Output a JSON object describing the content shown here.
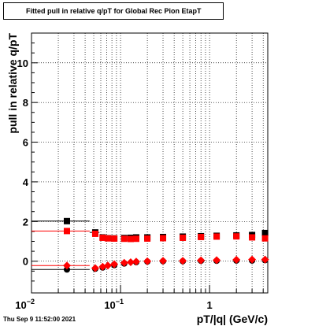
{
  "chart_data": {
    "type": "scatter",
    "title": "Fitted pull in relative q/pT for Global Rec Pion EtapT",
    "xlabel": "pT/|q| (GeV/c)",
    "ylabel": "pull in relative q/pT",
    "x_scale": "log",
    "xlim": [
      0.01,
      4.5
    ],
    "ylim": [
      -1.6,
      11.5
    ],
    "x_ticks": [
      {
        "value": 0.01,
        "base": "10",
        "exp": "−2"
      },
      {
        "value": 0.1,
        "base": "10",
        "exp": "−1"
      },
      {
        "value": 1,
        "base": "1",
        "exp": ""
      }
    ],
    "y_ticks": [
      0,
      2,
      4,
      6,
      8,
      10
    ],
    "grid": true,
    "timestamp": "Thu Sep  9 11:52:00 2021",
    "series": [
      {
        "marker": "square",
        "color": "#000000",
        "points": [
          [
            0.025,
            2.02
          ],
          [
            0.052,
            1.45
          ],
          [
            0.063,
            1.2
          ],
          [
            0.072,
            1.16
          ],
          [
            0.085,
            1.15
          ],
          [
            0.11,
            1.17
          ],
          [
            0.13,
            1.18
          ],
          [
            0.15,
            1.2
          ],
          [
            0.2,
            1.2
          ],
          [
            0.3,
            1.22
          ],
          [
            0.5,
            1.24
          ],
          [
            0.8,
            1.26
          ],
          [
            1.2,
            1.28
          ],
          [
            2.0,
            1.3
          ],
          [
            3.0,
            1.32
          ],
          [
            4.2,
            1.42
          ]
        ],
        "errors": [
          {
            "x": 0.025,
            "y": 2.02,
            "xlo": 0.01,
            "xhi": 0.045
          },
          {
            "x": 0.052,
            "y": 1.45,
            "xlo": 0.045,
            "xhi": 0.058
          }
        ]
      },
      {
        "marker": "square",
        "color": "#ff0000",
        "points": [
          [
            0.025,
            1.52
          ],
          [
            0.052,
            1.38
          ],
          [
            0.063,
            1.18
          ],
          [
            0.072,
            1.15
          ],
          [
            0.085,
            1.14
          ],
          [
            0.11,
            1.13
          ],
          [
            0.13,
            1.12
          ],
          [
            0.15,
            1.13
          ],
          [
            0.2,
            1.14
          ],
          [
            0.3,
            1.16
          ],
          [
            0.5,
            1.18
          ],
          [
            0.8,
            1.22
          ],
          [
            1.2,
            1.24
          ],
          [
            2.0,
            1.25
          ],
          [
            3.0,
            1.2
          ],
          [
            4.2,
            1.15
          ]
        ],
        "errors": [
          {
            "x": 0.025,
            "y": 1.52,
            "xlo": 0.01,
            "xhi": 0.045
          }
        ]
      },
      {
        "marker": "circle",
        "color": "#000000",
        "points": [
          [
            0.025,
            -0.42
          ],
          [
            0.052,
            -0.38
          ],
          [
            0.063,
            -0.32
          ],
          [
            0.085,
            -0.2
          ],
          [
            0.11,
            -0.12
          ],
          [
            0.15,
            -0.05
          ],
          [
            0.2,
            -0.02
          ],
          [
            0.3,
            0.0
          ],
          [
            0.5,
            0.0
          ],
          [
            0.8,
            0.02
          ],
          [
            1.2,
            0.02
          ],
          [
            2.0,
            0.03
          ],
          [
            3.0,
            0.03
          ],
          [
            4.2,
            0.05
          ]
        ],
        "errors": [
          {
            "x": 0.025,
            "y": -0.42,
            "xlo": 0.01,
            "xhi": 0.045
          }
        ]
      },
      {
        "marker": "diamond",
        "color": "#ff0000",
        "points": [
          [
            0.025,
            -0.22
          ],
          [
            0.052,
            -0.35
          ],
          [
            0.063,
            -0.28
          ],
          [
            0.072,
            -0.22
          ],
          [
            0.085,
            -0.15
          ],
          [
            0.11,
            -0.08
          ],
          [
            0.13,
            -0.05
          ],
          [
            0.15,
            -0.02
          ],
          [
            0.2,
            0.0
          ],
          [
            0.3,
            0.02
          ],
          [
            0.5,
            0.02
          ],
          [
            0.8,
            0.04
          ],
          [
            1.2,
            0.05
          ],
          [
            2.0,
            0.07
          ],
          [
            3.0,
            0.08
          ],
          [
            4.2,
            0.08
          ]
        ],
        "errors": [
          {
            "x": 0.025,
            "y": -0.22,
            "xlo": 0.01,
            "xhi": 0.045
          }
        ]
      }
    ]
  }
}
